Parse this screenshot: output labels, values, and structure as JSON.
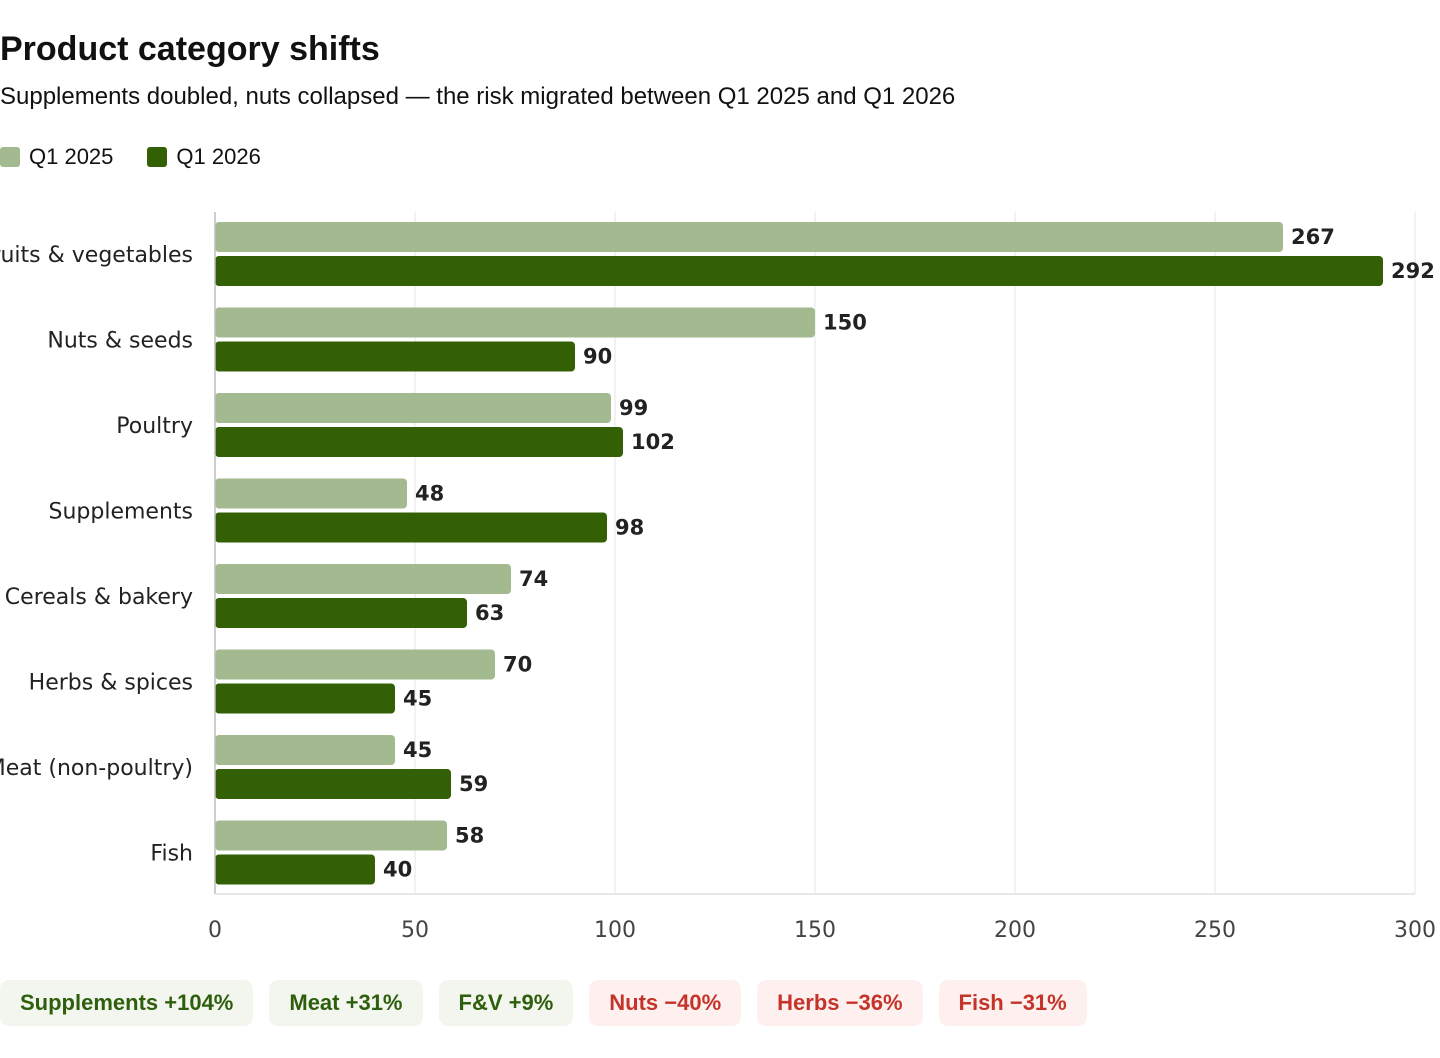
{
  "header": {
    "title": "Product category shifts",
    "subtitle": "Supplements doubled, nuts collapsed — the risk migrated between Q1 2025 and Q1 2026"
  },
  "legend": [
    {
      "label": "Q1 2025",
      "color": "#a3b98f"
    },
    {
      "label": "Q1 2026",
      "color": "#336004"
    }
  ],
  "chart_data": {
    "type": "bar",
    "orientation": "horizontal",
    "categories": [
      "Fruits & vegetables",
      "Nuts & seeds",
      "Poultry",
      "Supplements",
      "Cereals & bakery",
      "Herbs & spices",
      "Meat (non-poultry)",
      "Fish"
    ],
    "series": [
      {
        "name": "Q1 2025",
        "color": "#a3b98f",
        "values": [
          267,
          150,
          99,
          48,
          74,
          70,
          45,
          58
        ]
      },
      {
        "name": "Q1 2026",
        "color": "#336004",
        "values": [
          292,
          90,
          102,
          98,
          63,
          45,
          59,
          40
        ]
      }
    ],
    "xlim": [
      0,
      300
    ],
    "xticks": [
      0,
      50,
      100,
      150,
      200,
      250,
      300
    ],
    "grid": true,
    "legend_position": "top-left"
  },
  "badges": [
    {
      "label": "Supplements +104%",
      "direction": "up"
    },
    {
      "label": "Meat +31%",
      "direction": "up"
    },
    {
      "label": "F&V +9%",
      "direction": "up"
    },
    {
      "label": "Nuts −40%",
      "direction": "down"
    },
    {
      "label": "Herbs −36%",
      "direction": "down"
    },
    {
      "label": "Fish −31%",
      "direction": "down"
    }
  ]
}
